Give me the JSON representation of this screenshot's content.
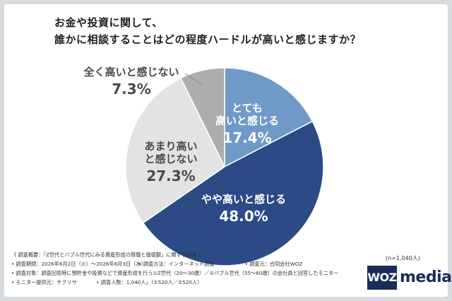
{
  "question": {
    "line1": "お金や投資に関して、",
    "line2": "誰かに相談することはどの程度ハードルが高いと感じますか？"
  },
  "chart_data": {
    "type": "pie",
    "slices": [
      {
        "label": "とても 高いと感じる",
        "line1": "とても",
        "line2": "高いと感じる",
        "value": 17.4,
        "value_label": "17.4%",
        "color": "#6f9ac7",
        "text_color": "#ffffff"
      },
      {
        "label": "やや高いと感じる",
        "line1": "やや高いと感じる",
        "line2": "",
        "value": 48.0,
        "value_label": "48.0%",
        "color": "#2b4a86",
        "text_color": "#ffffff"
      },
      {
        "label": "あまり高い と感じない",
        "line1": "あまり高い",
        "line2": "と感じない",
        "value": 27.3,
        "value_label": "27.3%",
        "color": "#e3e3e3",
        "text_color": "#4a4a4a"
      },
      {
        "label": "全く高いと感じない",
        "line1": "全く高いと感じない",
        "line2": "",
        "value": 7.3,
        "value_label": "7.3%",
        "color": "#adadad",
        "text_color": "#4a4a4a"
      }
    ],
    "start": "12 o'clock, clockwise"
  },
  "survey": {
    "overview": "《 調査概要：「Z世代とバブル世代にみる資産形成の情報と価値観」に関する調査 》",
    "period": "• 調査期間：2026年6月2日（火）〜2026年6月3日（水）",
    "method": "• 調査方法：インターネット調査",
    "organizer": "• 調査元：合同会社WOZ",
    "target": "• 調査対象：調査回答時に預貯金や投資などで資産形成を行う①Z世代（20〜30歳）／②バブル世代（55〜60歳）の会社員と回答したモニター",
    "provider": "• モニター提供元：サクリサ",
    "count": "• 調査人数：1,040人」（①520人／②520人）"
  },
  "n_note": "(n=1,040人)",
  "logo": {
    "box": "WOZ",
    "text": "media"
  }
}
